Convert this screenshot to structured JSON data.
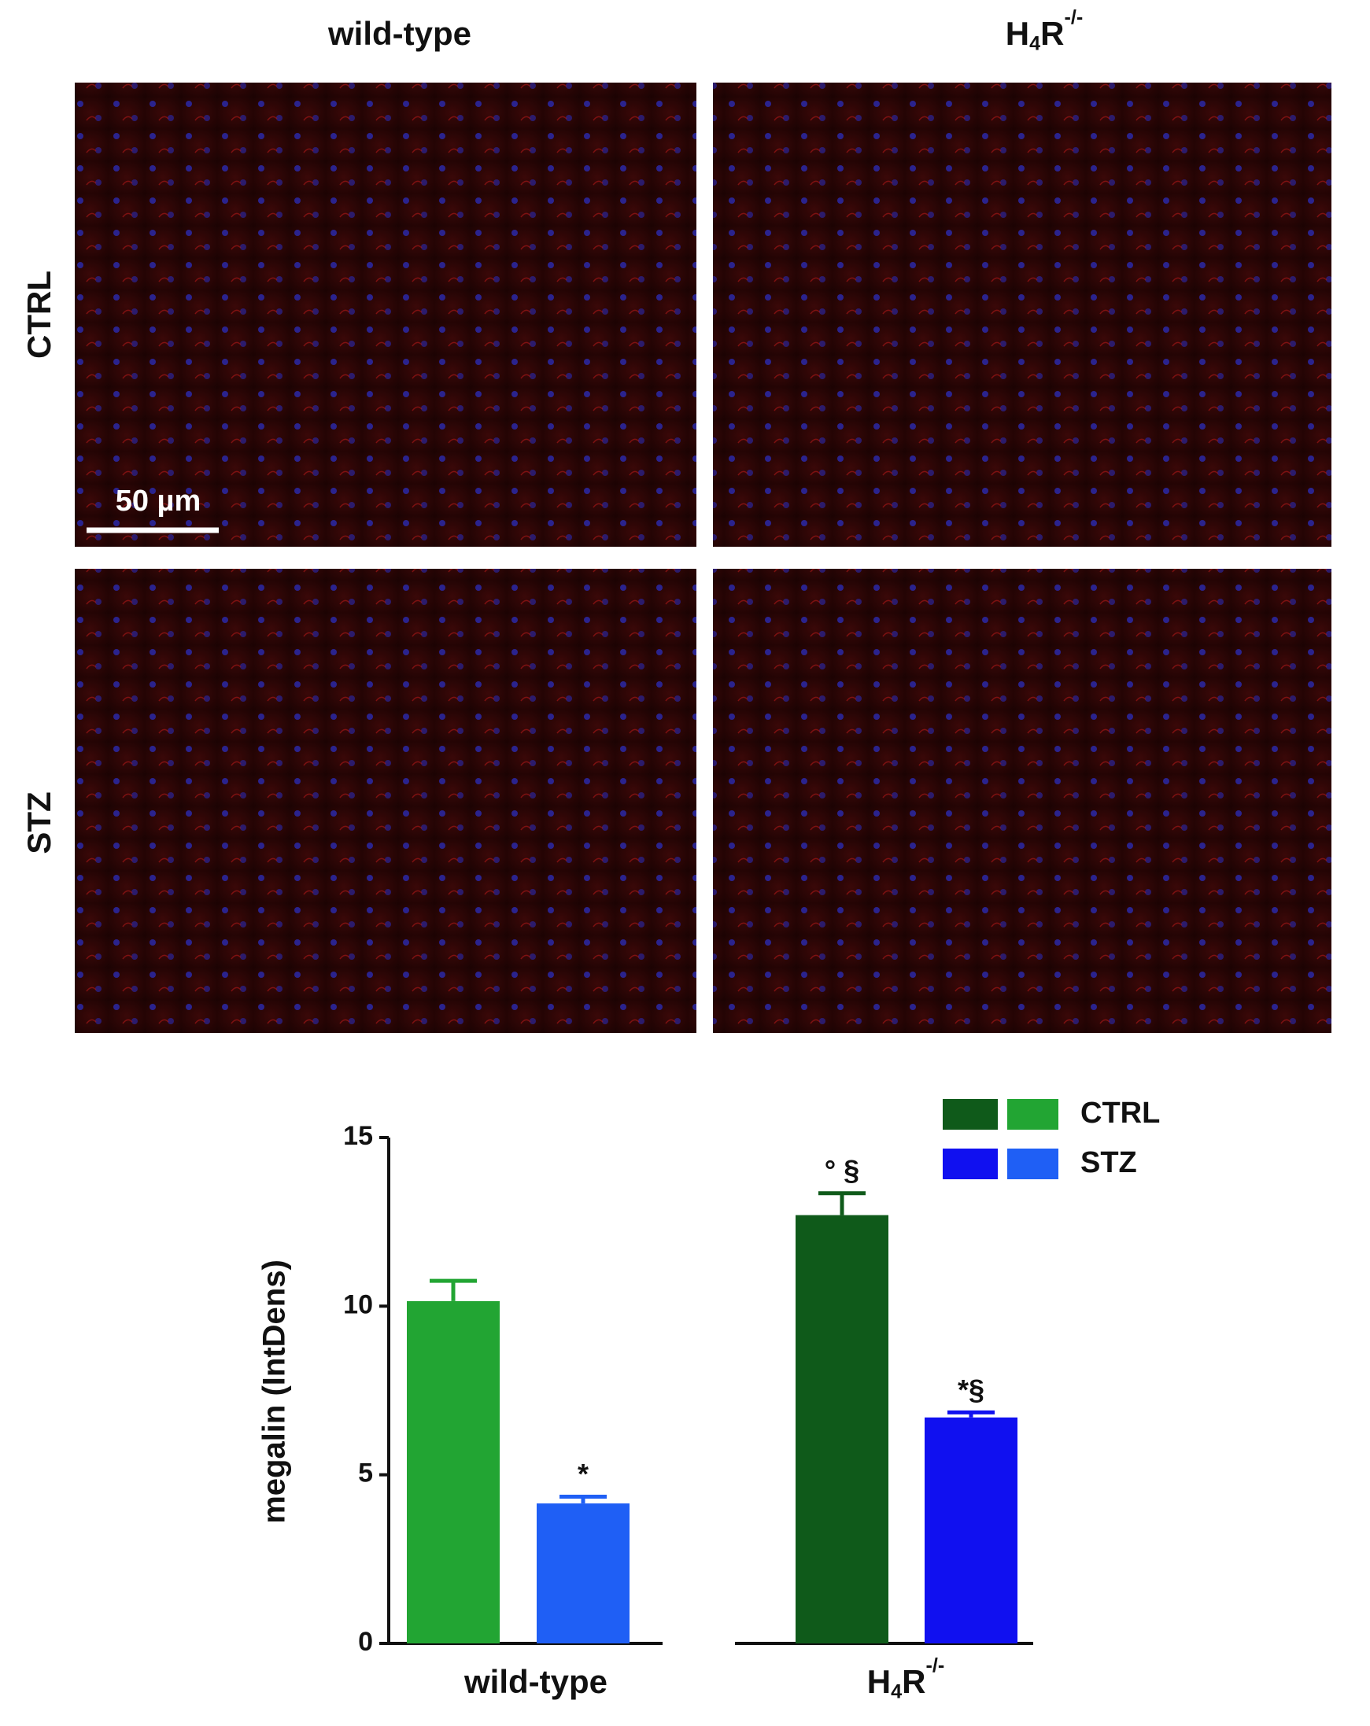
{
  "figure": {
    "columns": [
      "wild-type",
      {
        "text": "H",
        "sub": "4",
        "text2": "R",
        "sup": "-/-"
      }
    ],
    "rows": [
      "CTRL",
      "STZ"
    ],
    "scale_bar": "50 µm"
  },
  "chart_data": {
    "type": "bar",
    "ylabel": "megalin  (IntDens)",
    "categories": [
      "wild-type",
      {
        "text": "H",
        "sub": "4",
        "text2": "R",
        "sup": "-/-"
      }
    ],
    "series": [
      {
        "name": "CTRL",
        "colors": [
          "#22a533",
          "#0f5a1a"
        ],
        "values": [
          10.15,
          12.7
        ],
        "errors": [
          0.6,
          0.65
        ],
        "annotations": [
          null,
          "° §"
        ]
      },
      {
        "name": "STZ",
        "colors": [
          "#1f5ff5",
          "#1010f0"
        ],
        "values": [
          4.15,
          6.7
        ],
        "errors": [
          0.2,
          0.15
        ],
        "annotations": [
          "*",
          "*§"
        ]
      }
    ],
    "ylim": [
      0,
      15
    ],
    "yticks": [
      0,
      5,
      10,
      15
    ]
  }
}
